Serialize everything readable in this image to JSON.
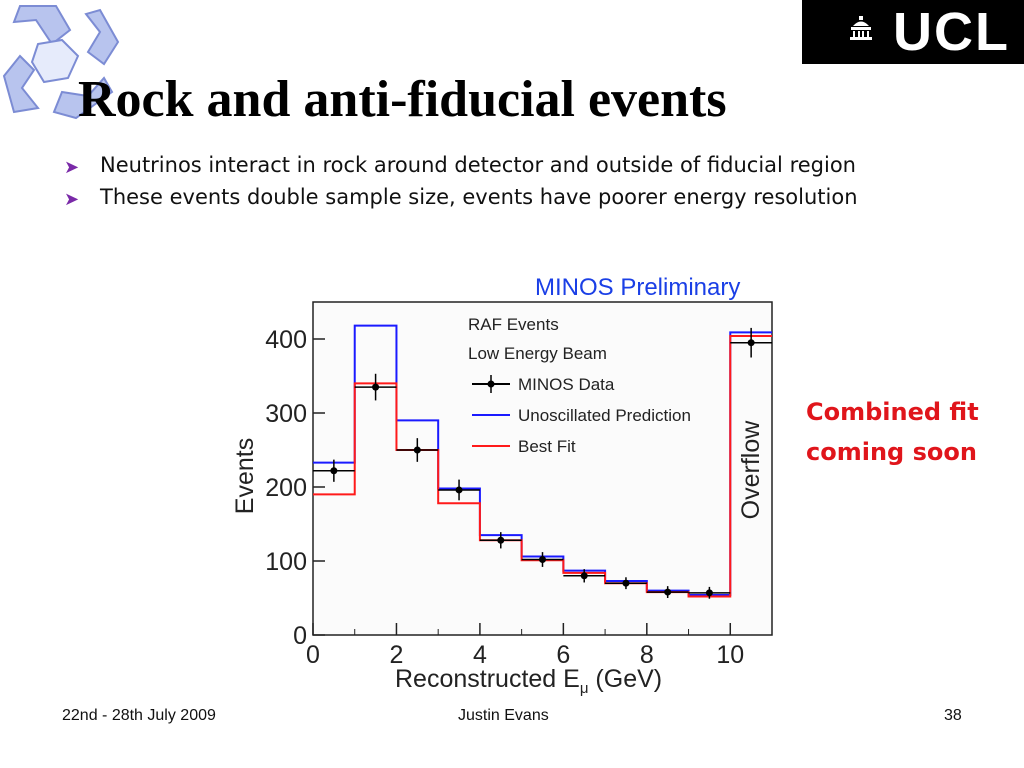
{
  "slide": {
    "title": "Rock and anti-fiducial events",
    "bullets": [
      "Neutrinos interact in rock around detector and outside of fiducial region",
      "These events double sample size, events have poorer energy resolution"
    ],
    "callout": [
      "Combined fit",
      "coming soon"
    ],
    "footer": {
      "date": "22nd - 28th July 2009",
      "author": "Justin Evans",
      "page": "38"
    },
    "logo_text": "UCL",
    "colors": {
      "callout": "#e0151b",
      "bullet": "#7a2aa8",
      "unosc": "#1a1aff",
      "bestfit": "#ff1a1a",
      "data": "#000000"
    }
  },
  "chart_data": {
    "type": "line",
    "title": "MINOS Preliminary",
    "xlabel": "Reconstructed E",
    "xlabel_sub": "μ",
    "xlabel_unit": " (GeV)",
    "ylabel": "Events",
    "overflow_label": "Overflow",
    "xlim": [
      0,
      11
    ],
    "ylim": [
      0,
      450
    ],
    "xticks": [
      "0",
      "2",
      "4",
      "6",
      "8",
      "10"
    ],
    "yticks": [
      "0",
      "100",
      "200",
      "300",
      "400"
    ],
    "bin_edges": [
      0,
      1,
      2,
      3,
      4,
      5,
      6,
      7,
      8,
      9,
      10,
      11
    ],
    "legend_header": [
      "RAF Events",
      "Low Energy Beam"
    ],
    "legend_position": "top-left",
    "series": [
      {
        "name": "MINOS Data",
        "kind": "points",
        "x": [
          0.5,
          1.5,
          2.5,
          3.5,
          4.5,
          5.5,
          6.5,
          7.5,
          8.5,
          9.5,
          10.5
        ],
        "y": [
          222,
          335,
          250,
          196,
          128,
          102,
          80,
          70,
          58,
          57,
          395
        ],
        "err": [
          15,
          18,
          16,
          14,
          11,
          10,
          9,
          8,
          8,
          8,
          20
        ]
      },
      {
        "name": "Unoscillated Prediction",
        "kind": "step",
        "values": [
          233,
          418,
          290,
          198,
          135,
          106,
          87,
          73,
          60,
          54,
          409
        ]
      },
      {
        "name": "Best Fit",
        "kind": "step",
        "values": [
          190,
          340,
          250,
          178,
          128,
          101,
          84,
          70,
          58,
          52,
          404
        ]
      }
    ]
  }
}
